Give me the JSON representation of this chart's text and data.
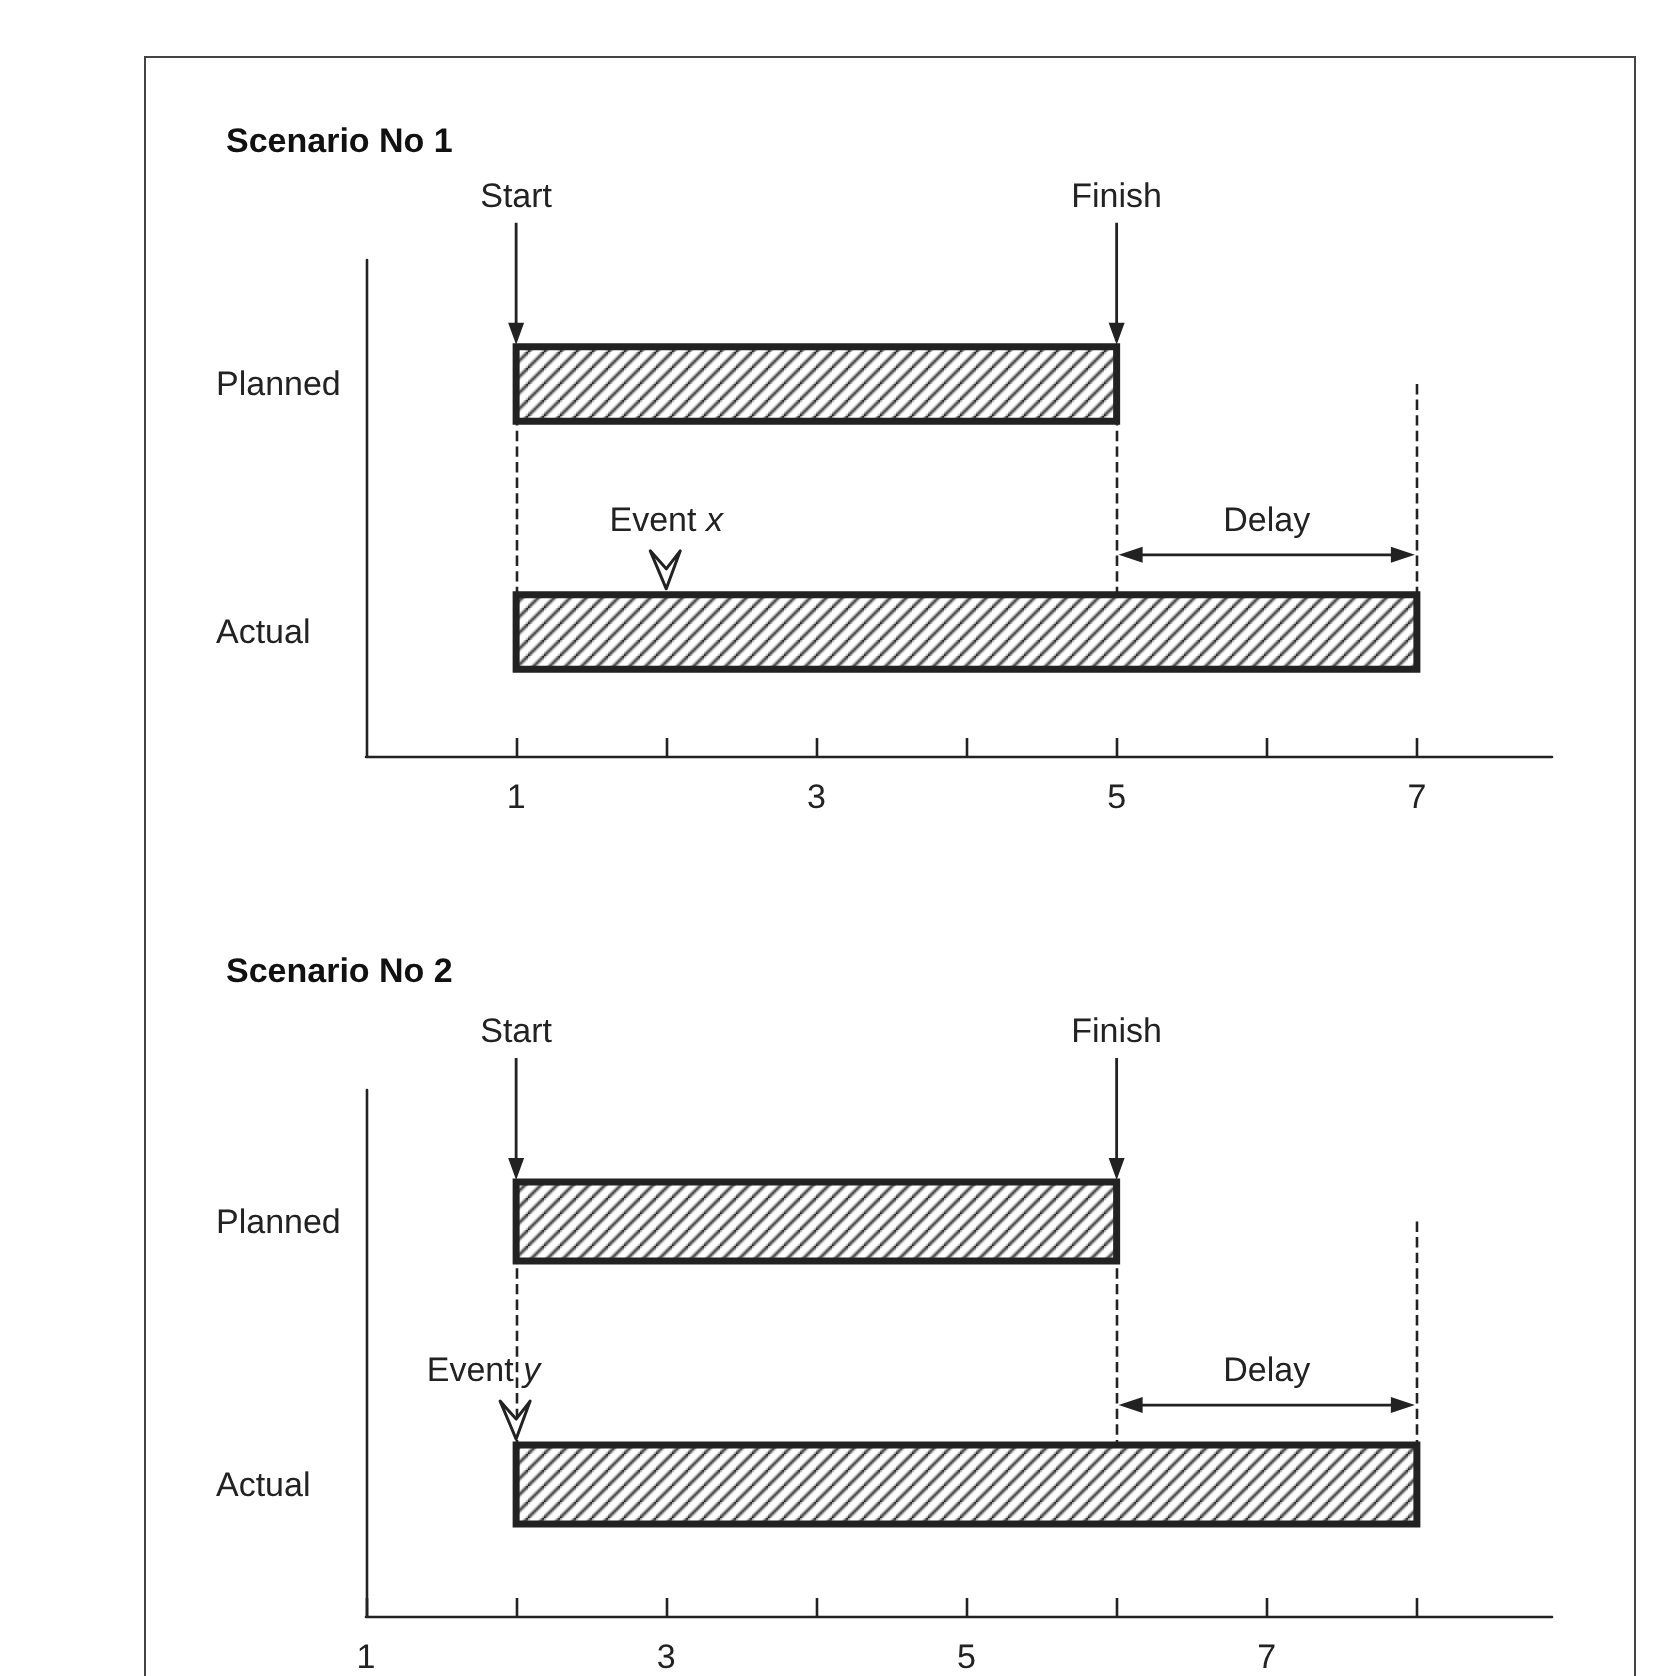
{
  "chart_data": [
    {
      "type": "bar",
      "orientation": "horizontal",
      "title": "Scenario No 1",
      "categories": [
        "Planned",
        "Actual"
      ],
      "base": [
        1,
        1
      ],
      "values": [
        4,
        6
      ],
      "color": "#222222",
      "xlim": [
        0,
        7.9
      ],
      "xticks": [
        1,
        {
          "value": 2,
          "label": null
        },
        3,
        {
          "value": 4,
          "label": null
        },
        5,
        {
          "value": 6,
          "label": null
        },
        7
      ],
      "ref_lines": [
        {
          "axis": "x",
          "value": 1,
          "line_style": "dashed"
        },
        {
          "axis": "x",
          "value": 5,
          "line_style": "dashed"
        },
        {
          "axis": "x",
          "value": 7,
          "line_style": "dashed"
        }
      ],
      "annotations": [
        "Start",
        "Finish",
        "Event x",
        "Delay"
      ]
    },
    {
      "type": "bar",
      "orientation": "horizontal",
      "title": "Scenario No 2",
      "categories": [
        "Planned",
        "Actual"
      ],
      "base": [
        2,
        2
      ],
      "values": [
        4,
        6
      ],
      "color": "#222222",
      "xlim": [
        1,
        8.9
      ],
      "xticks": [
        1,
        {
          "value": 2,
          "label": null
        },
        3,
        {
          "value": 4,
          "label": null
        },
        5,
        {
          "value": 6,
          "label": null
        },
        7,
        {
          "value": 8,
          "label": null
        }
      ],
      "ref_lines": [
        {
          "axis": "x",
          "value": 2,
          "line_style": "dashed"
        },
        {
          "axis": "x",
          "value": 6,
          "line_style": "dashed"
        },
        {
          "axis": "x",
          "value": 8,
          "line_style": "dashed"
        }
      ],
      "annotations": [
        "Start",
        "Finish",
        {
          "text": "Event y",
          "x": 2,
          "y": "Actual"
        },
        "Delay"
      ]
    }
  ]
}
